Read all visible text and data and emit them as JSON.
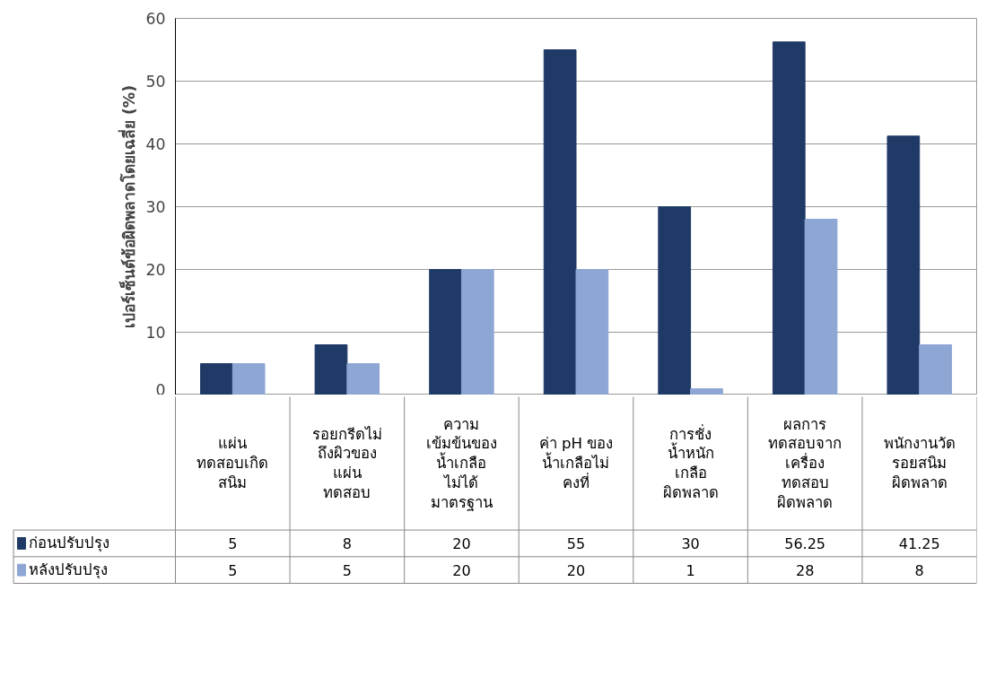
{
  "chart_data": {
    "type": "bar",
    "ylabel": "เปอร์เซ็นต์ข้อผิดพลาดโดยเฉลี่ย (%)",
    "categories": [
      "แผ่น\nทดสอบเกิด\nสนิม",
      "รอยกรีดไม่\nถึงผิวของ\nแผ่น\nทดสอบ",
      "ความ\nเข้มข้นของ\nน้ำเกลือ\nไม่ได้\nมาตรฐาน",
      "ค่า pH ของ\nน้ำเกลือไม่\nคงที่",
      "การชั่ง\nน้ำหนัก\nเกลือ\nผิดพลาด",
      "ผลการ\nทดสอบจาก\nเครื่อง\nทดสอบ\nผิดพลาด",
      "พนักงานวัด\nรอยสนิม\nผิดพลาด"
    ],
    "series": [
      {
        "name": "ก่อนปรับปรุง",
        "color": "#1f3a66",
        "values": [
          5,
          8,
          20,
          55,
          30,
          56.25,
          41.25
        ]
      },
      {
        "name": "หลังปรับปรุง",
        "color": "#8ea6d4",
        "values": [
          5,
          5,
          20,
          20,
          1,
          28,
          8
        ]
      }
    ],
    "ylim": [
      0,
      60
    ],
    "yticks": [
      0,
      10,
      20,
      30,
      40,
      50,
      60
    ],
    "grid": "y",
    "legend": "bottom left",
    "data_labels": true
  }
}
